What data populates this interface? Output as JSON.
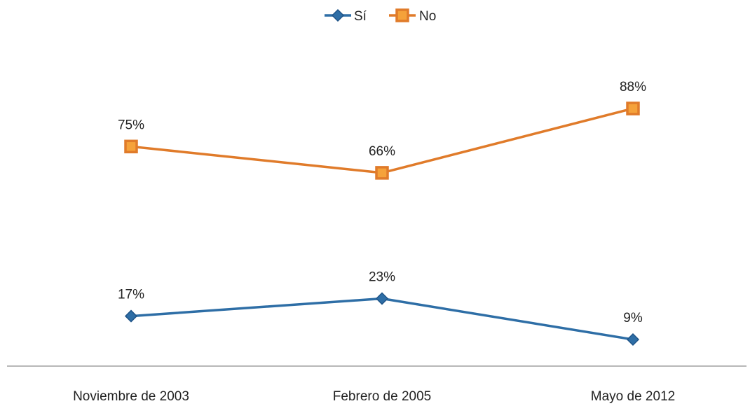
{
  "chart_data": {
    "type": "line",
    "categories": [
      "Noviembre de 2003",
      "Febrero de 2005",
      "Mayo de 2012"
    ],
    "series": [
      {
        "name": "Sí",
        "values": [
          17,
          23,
          9
        ],
        "labels": [
          "17%",
          "23%",
          "9%"
        ],
        "color": "#2E6EA6",
        "marker": "diamond"
      },
      {
        "name": "No",
        "values": [
          75,
          66,
          88
        ],
        "labels": [
          "75%",
          "66%",
          "88%"
        ],
        "color": "#E07B2A",
        "marker": "square"
      }
    ],
    "ylim": [
      7,
      95
    ],
    "unit": "%",
    "legend": "top-center",
    "grid": false,
    "marker_fill": "#F5A23A",
    "axis_color": "#A0A0A0"
  }
}
